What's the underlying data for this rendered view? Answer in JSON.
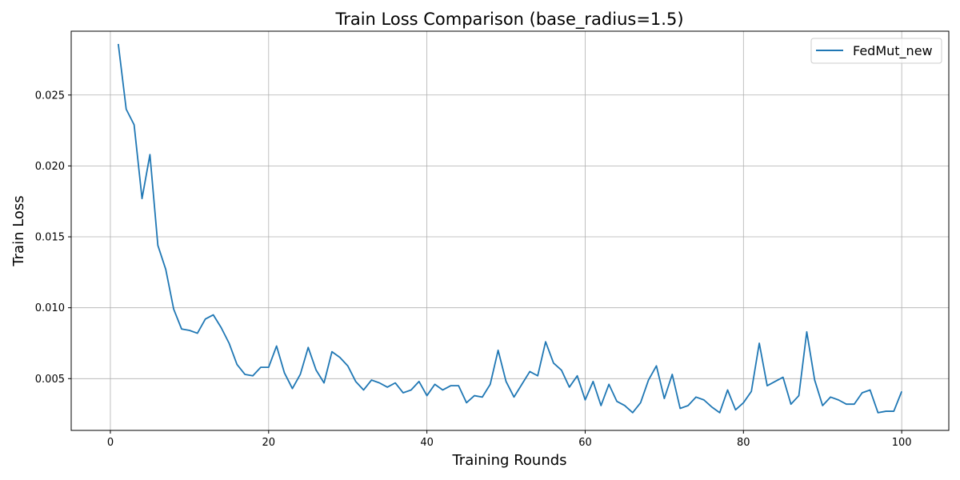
{
  "chart_data": {
    "type": "line",
    "title": "Train Loss Comparison (base_radius=1.5)",
    "xlabel": "Training Rounds",
    "ylabel": "Train Loss",
    "xlim": [
      -4.95,
      105.95
    ],
    "ylim": [
      0.00135,
      0.0295
    ],
    "xticks": [
      0,
      20,
      40,
      60,
      80,
      100
    ],
    "xtick_labels": [
      "0",
      "20",
      "40",
      "60",
      "80",
      "100"
    ],
    "yticks": [
      0.005,
      0.01,
      0.015,
      0.02,
      0.025
    ],
    "ytick_labels": [
      "0.005",
      "0.010",
      "0.015",
      "0.020",
      "0.025"
    ],
    "grid": true,
    "legend_position": "top-right",
    "series": [
      {
        "name": "FedMut_new",
        "color": "#1f77b4",
        "x": [
          1,
          2,
          3,
          4,
          5,
          6,
          7,
          8,
          9,
          10,
          11,
          12,
          13,
          14,
          15,
          16,
          17,
          18,
          19,
          20,
          21,
          22,
          23,
          24,
          25,
          26,
          27,
          28,
          29,
          30,
          31,
          32,
          33,
          34,
          35,
          36,
          37,
          38,
          39,
          40,
          41,
          42,
          43,
          44,
          45,
          46,
          47,
          48,
          49,
          50,
          51,
          52,
          53,
          54,
          55,
          56,
          57,
          58,
          59,
          60,
          61,
          62,
          63,
          64,
          65,
          66,
          67,
          68,
          69,
          70,
          71,
          72,
          73,
          74,
          75,
          76,
          77,
          78,
          79,
          80,
          81,
          82,
          83,
          84,
          85,
          86,
          87,
          88,
          89,
          90,
          91,
          92,
          93,
          94,
          95,
          96,
          97,
          98,
          99,
          100
        ],
        "y": [
          0.0286,
          0.024,
          0.0229,
          0.0177,
          0.0208,
          0.0144,
          0.0127,
          0.0099,
          0.0085,
          0.0084,
          0.0082,
          0.0092,
          0.0095,
          0.0086,
          0.0075,
          0.006,
          0.0053,
          0.0052,
          0.0058,
          0.0058,
          0.0073,
          0.0054,
          0.0043,
          0.0053,
          0.0072,
          0.0056,
          0.0047,
          0.0069,
          0.0065,
          0.0059,
          0.0048,
          0.0042,
          0.0049,
          0.0047,
          0.0044,
          0.0047,
          0.004,
          0.0042,
          0.0048,
          0.0038,
          0.0046,
          0.0042,
          0.0045,
          0.0045,
          0.0033,
          0.0038,
          0.0037,
          0.0046,
          0.007,
          0.0048,
          0.0037,
          0.0046,
          0.0055,
          0.0052,
          0.0076,
          0.0061,
          0.0056,
          0.0044,
          0.0052,
          0.0035,
          0.0048,
          0.0031,
          0.0046,
          0.0034,
          0.0031,
          0.0026,
          0.0033,
          0.0049,
          0.0059,
          0.0036,
          0.0053,
          0.0029,
          0.0031,
          0.0037,
          0.0035,
          0.003,
          0.0026,
          0.0042,
          0.0028,
          0.0033,
          0.0041,
          0.0075,
          0.0045,
          0.0048,
          0.0051,
          0.0032,
          0.0038,
          0.0083,
          0.0049,
          0.0031,
          0.0037,
          0.0035,
          0.0032,
          0.0032,
          0.004,
          0.0042,
          0.0026,
          0.0027,
          0.0027,
          0.0041
        ]
      }
    ]
  }
}
